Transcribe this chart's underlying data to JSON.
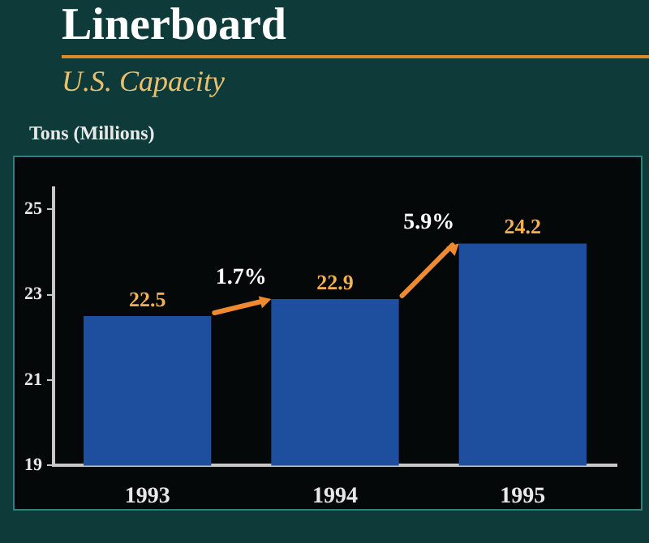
{
  "chart_data": {
    "type": "bar",
    "title": "Linerboard",
    "subtitle": "U.S. Capacity",
    "ylabel": "Tons (Millions)",
    "categories": [
      "1993",
      "1994",
      "1995"
    ],
    "values": [
      22.5,
      22.9,
      24.2
    ],
    "color": "#1d4f9e",
    "ylim": [
      19,
      25.5
    ],
    "yticks": [
      19,
      21,
      23,
      25
    ],
    "grid": false,
    "data_labels": true,
    "annotations": [
      "1.7%",
      "5.9%"
    ]
  }
}
